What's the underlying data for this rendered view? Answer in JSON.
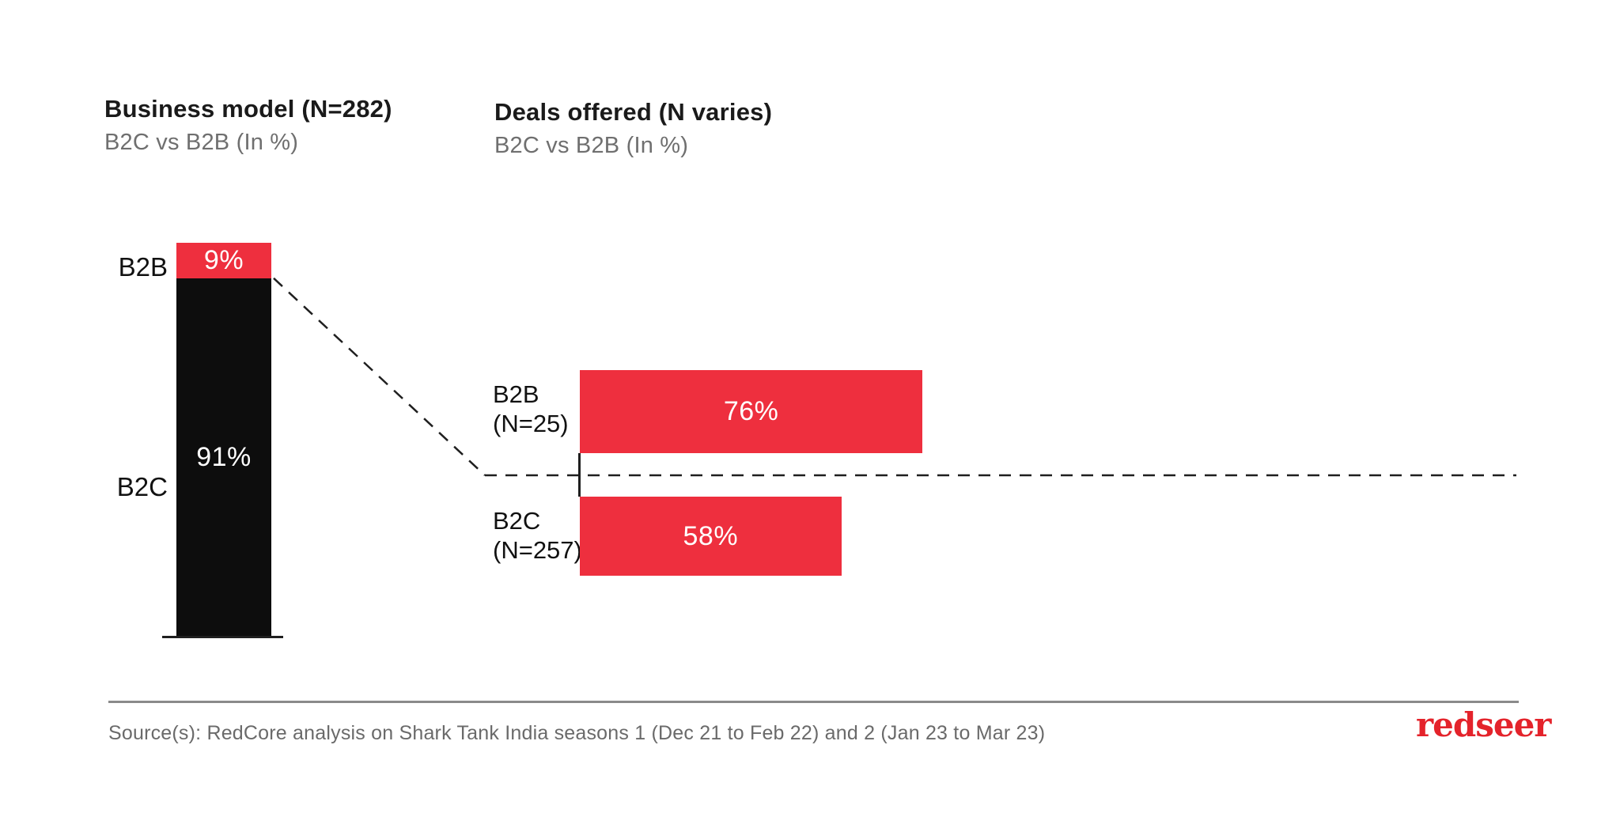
{
  "page": {
    "background": "#ffffff"
  },
  "chart_data": [
    {
      "type": "bar",
      "variant": "stacked-column",
      "title": "Business model (N=282)",
      "subtitle": "B2C vs B2B (In %)",
      "categories": [
        "B2B",
        "B2C"
      ],
      "values": [
        9,
        91
      ],
      "labels": [
        "9%",
        "91%"
      ],
      "colors": [
        "#EE2F3E",
        "#0D0D0D"
      ],
      "ylim": [
        0,
        100
      ],
      "grid": false,
      "legend": "none"
    },
    {
      "type": "bar",
      "variant": "horizontal",
      "title": "Deals offered (N varies)",
      "subtitle": "B2C vs B2B (In %)",
      "categories": [
        "B2B",
        "B2C"
      ],
      "n_labels": [
        "(N=25)",
        "(N=257)"
      ],
      "values": [
        76,
        58
      ],
      "labels": [
        "76%",
        "58%"
      ],
      "color": "#EE2F3E",
      "xlim": [
        0,
        100
      ],
      "grid": false,
      "legend": "none"
    }
  ],
  "annotations": {
    "connector_style": "dashed"
  },
  "footer": {
    "source": "Source(s): RedCore analysis on Shark Tank India seasons 1 (Dec 21 to Feb 22) and 2 (Jan 23 to Mar 23)",
    "logo": "redseer",
    "logo_color": "#E4232B"
  }
}
